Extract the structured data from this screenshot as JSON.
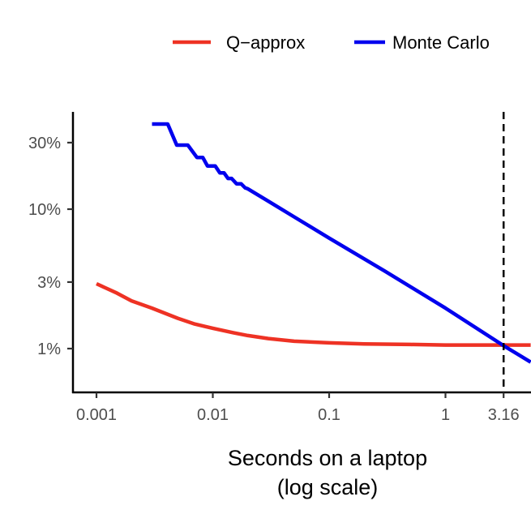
{
  "chart_data": {
    "type": "line",
    "title": "",
    "xlabel": [
      "Seconds on a laptop",
      "(log scale)"
    ],
    "ylabel": "",
    "x_scale": "log",
    "y_scale": "log",
    "xlim": [
      0.00063,
      5.4
    ],
    "ylim": [
      0.49,
      48.5
    ],
    "grid": false,
    "legend_position": "top",
    "x_ticks": [
      {
        "value": 0.001,
        "label": "0.001"
      },
      {
        "value": 0.01,
        "label": "0.01"
      },
      {
        "value": 0.1,
        "label": "0.1"
      },
      {
        "value": 1,
        "label": "1"
      },
      {
        "value": 3.16,
        "label": "3.16"
      }
    ],
    "y_ticks": [
      {
        "value": 1,
        "label": "1%"
      },
      {
        "value": 3,
        "label": "3%"
      },
      {
        "value": 10,
        "label": "10%"
      },
      {
        "value": 30,
        "label": "30%"
      }
    ],
    "vline": {
      "x": 3.16,
      "style": "dashed",
      "color": "#000000"
    },
    "series": [
      {
        "name": "Q−approx",
        "color": "#ee3224",
        "points": [
          [
            0.001,
            2.92
          ],
          [
            0.0015,
            2.5
          ],
          [
            0.002,
            2.2
          ],
          [
            0.003,
            1.95
          ],
          [
            0.005,
            1.65
          ],
          [
            0.007,
            1.5
          ],
          [
            0.01,
            1.4
          ],
          [
            0.015,
            1.3
          ],
          [
            0.02,
            1.24
          ],
          [
            0.03,
            1.18
          ],
          [
            0.05,
            1.13
          ],
          [
            0.1,
            1.1
          ],
          [
            0.2,
            1.08
          ],
          [
            0.5,
            1.07
          ],
          [
            1,
            1.06
          ],
          [
            3.16,
            1.06
          ],
          [
            5.4,
            1.06
          ]
        ]
      },
      {
        "name": "Monte Carlo",
        "color": "#0000ee",
        "points": [
          [
            0.003,
            40.8
          ],
          [
            0.0041,
            40.8
          ],
          [
            0.0049,
            28.8
          ],
          [
            0.0061,
            28.8
          ],
          [
            0.0073,
            23.5
          ],
          [
            0.0082,
            23.5
          ],
          [
            0.009,
            20.4
          ],
          [
            0.0105,
            20.4
          ],
          [
            0.0115,
            18.2
          ],
          [
            0.0125,
            18.2
          ],
          [
            0.0135,
            16.6
          ],
          [
            0.0145,
            16.6
          ],
          [
            0.016,
            15.2
          ],
          [
            0.0175,
            15.2
          ],
          [
            0.019,
            14.2
          ],
          [
            0.02,
            14.0
          ],
          [
            0.03,
            11.4
          ],
          [
            0.05,
            8.8
          ],
          [
            0.1,
            6.2
          ],
          [
            0.3,
            3.6
          ],
          [
            1,
            1.95
          ],
          [
            3.16,
            1.05
          ],
          [
            5.4,
            0.8
          ]
        ]
      }
    ]
  }
}
